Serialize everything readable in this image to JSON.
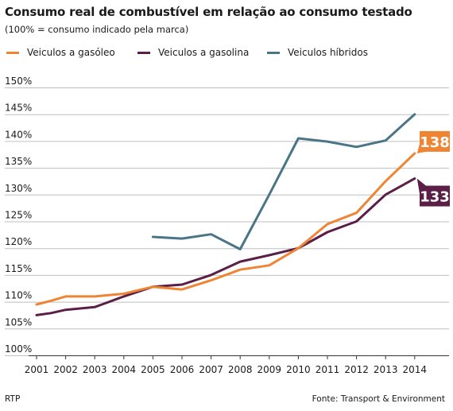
{
  "title": "Consumo real de combustível em relação ao consumo testado",
  "subtitle": "(100% = consumo indicado pela marca)",
  "footer": {
    "credit": "RTP",
    "source": "Fonte: Transport & Environment"
  },
  "colors": {
    "diesel": "#ee8535",
    "gasoline": "#5a1e47",
    "hybrid": "#4a7587",
    "grid": "#bfbfbf",
    "axis": "#333333"
  },
  "chart_data": {
    "type": "line",
    "xlabel": "",
    "ylabel": "",
    "ylim": [
      100,
      150
    ],
    "yticks": [
      100,
      105,
      110,
      115,
      120,
      125,
      130,
      135,
      140,
      145,
      150
    ],
    "ytick_labels": [
      "100%",
      "105%",
      "110%",
      "115%",
      "120%",
      "125%",
      "130%",
      "135%",
      "140%",
      "145%",
      "150%"
    ],
    "xlim": [
      2001,
      2014.8
    ],
    "xticks": [
      2001,
      2002,
      2003,
      2004,
      2005,
      2006,
      2007,
      2008,
      2009,
      2010,
      2011,
      2012,
      2013,
      2014
    ],
    "xtick_labels": [
      "2001",
      "2002",
      "2003",
      "2004",
      "2005",
      "2006",
      "2007",
      "2008",
      "2009",
      "2010",
      "2011",
      "2012",
      "2013",
      "2014"
    ],
    "grid": true,
    "legend_position": "top-left",
    "series": [
      {
        "key": "diesel",
        "name": "Veiculos a gasóleo",
        "end_label": "138",
        "x": [
          2001,
          2001.5,
          2002,
          2003,
          2004,
          2005,
          2006,
          2007,
          2008,
          2009,
          2010,
          2011,
          2012,
          2013,
          2014
        ],
        "y": [
          109.5,
          110.2,
          111,
          111,
          111.5,
          112.8,
          112.3,
          114,
          116,
          116.8,
          120,
          124.5,
          126.6,
          132.5,
          137.7
        ]
      },
      {
        "key": "gasoline",
        "name": "Veiculos a gasolina",
        "end_label": "133",
        "x": [
          2001,
          2001.5,
          2002,
          2003,
          2004,
          2005,
          2006,
          2007,
          2008,
          2009,
          2010,
          2011,
          2012,
          2013,
          2014
        ],
        "y": [
          107.5,
          107.9,
          108.5,
          109,
          111,
          112.8,
          113.2,
          115,
          117.5,
          118.7,
          120,
          123,
          125,
          130,
          133
        ]
      },
      {
        "key": "hybrid",
        "name": "Veiculos híbridos",
        "end_label": "",
        "x": [
          2005,
          2006,
          2007,
          2008,
          2009,
          2010,
          2011,
          2012,
          2013,
          2014
        ],
        "y": [
          122.1,
          121.8,
          122.6,
          119.8,
          130,
          140.5,
          139.9,
          138.9,
          140.1,
          145
        ]
      }
    ]
  }
}
